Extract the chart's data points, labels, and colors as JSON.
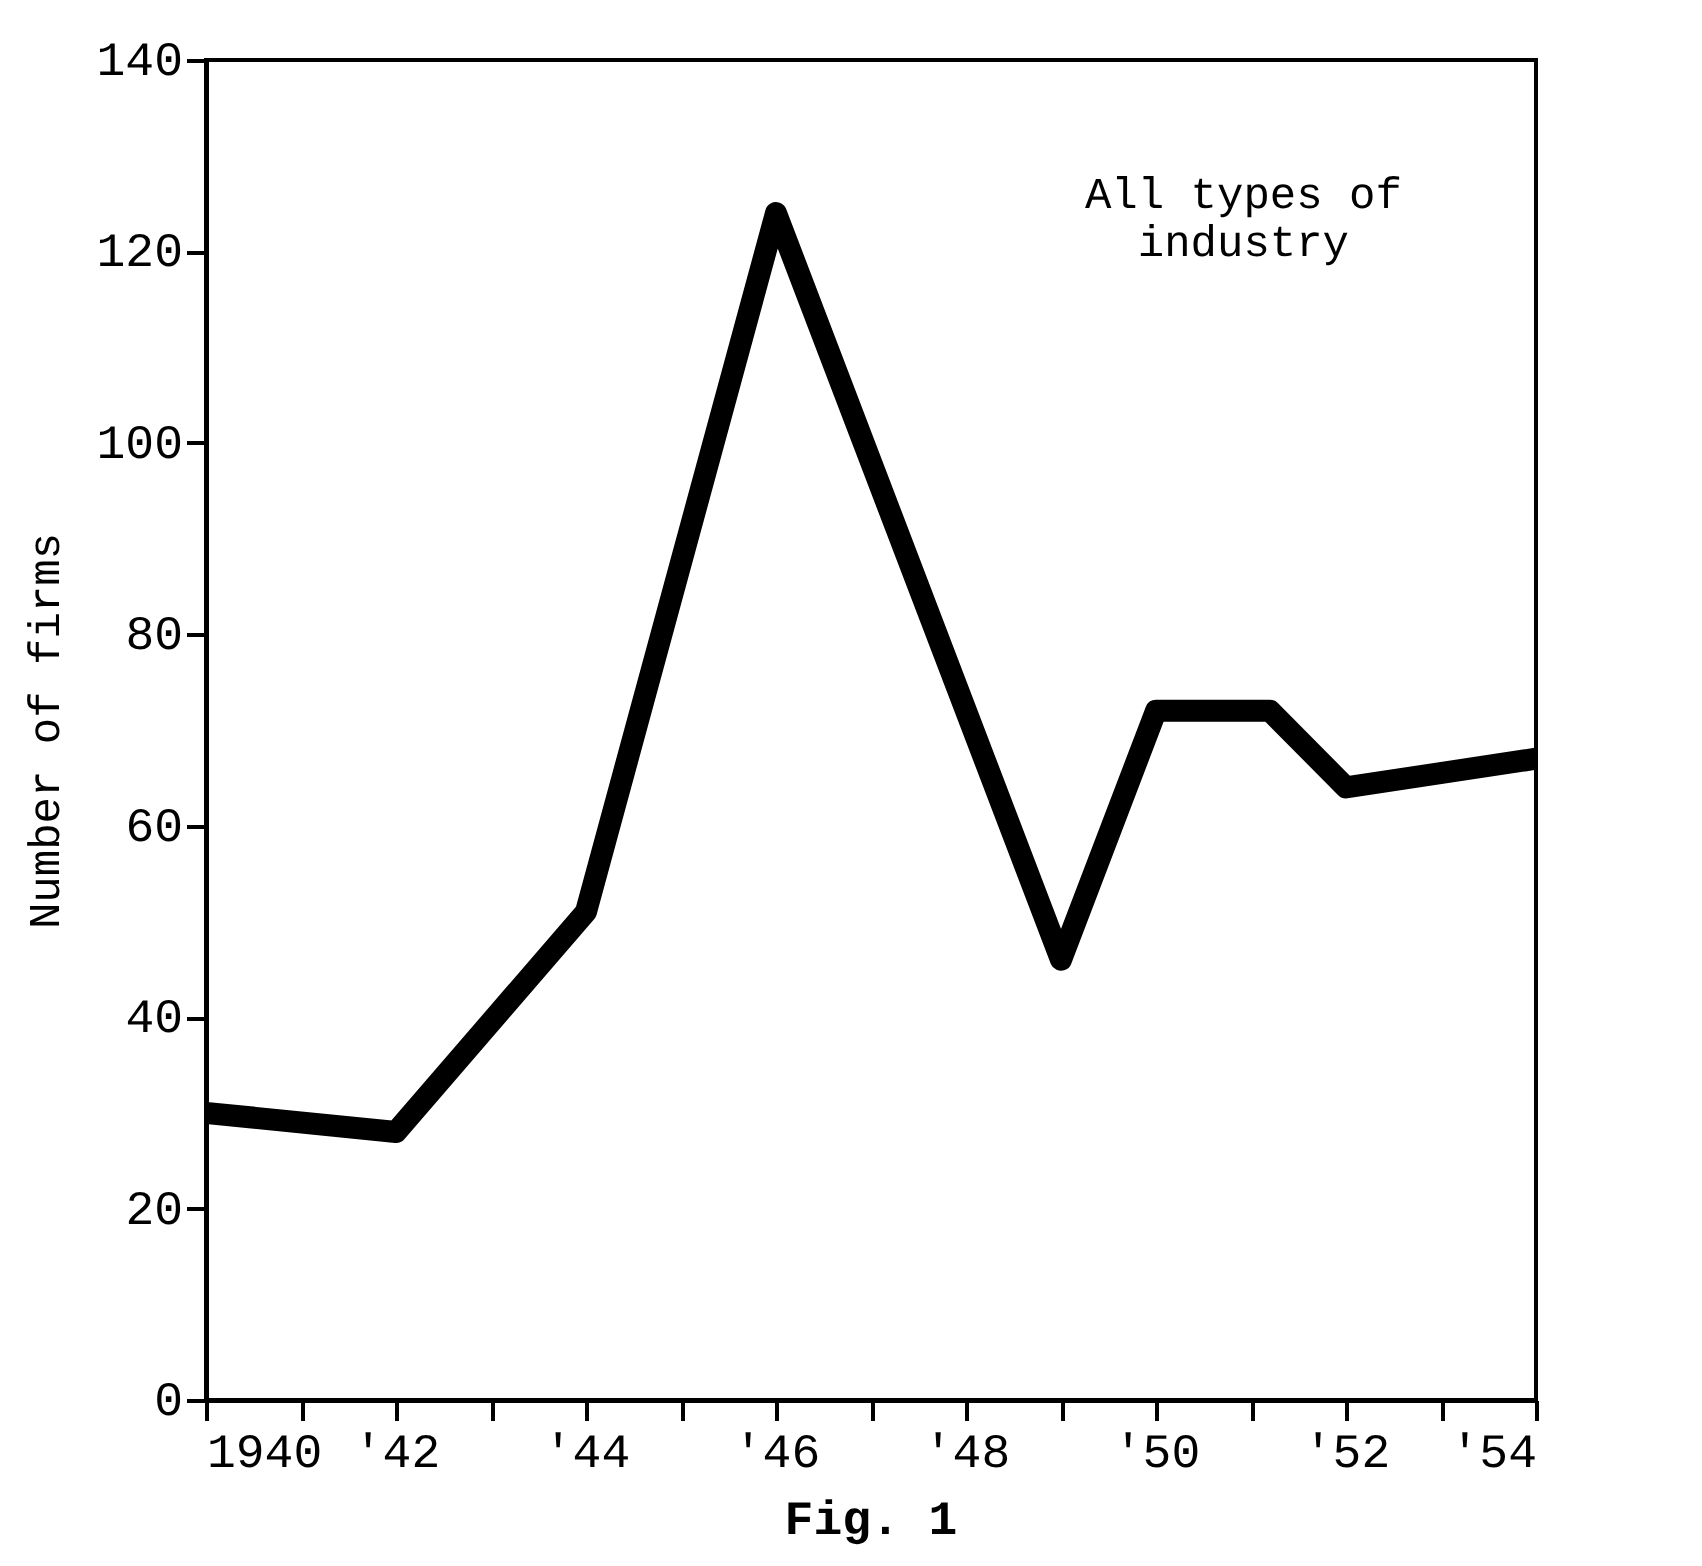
{
  "chart_data": {
    "type": "line",
    "ylabel": "Number of firms",
    "annotations": [
      "All types of industry",
      "Fig. 1"
    ],
    "x": [
      1940,
      1942,
      1944,
      1946,
      1949,
      1950,
      1951.2,
      1952,
      1954
    ],
    "series": [
      {
        "color": "#000000",
        "values": [
          30,
          28,
          51,
          124,
          46,
          72,
          72,
          64,
          67
        ]
      }
    ],
    "xlim": [
      1940,
      1954
    ],
    "xticks": [
      {
        "value": 1940,
        "label": "1940"
      },
      {
        "value": 1941,
        "label": null
      },
      {
        "value": 1942,
        "label": "'42"
      },
      {
        "value": 1943,
        "label": null
      },
      {
        "value": 1944,
        "label": "'44"
      },
      {
        "value": 1945,
        "label": null
      },
      {
        "value": 1946,
        "label": "'46"
      },
      {
        "value": 1947,
        "label": null
      },
      {
        "value": 1948,
        "label": "'48"
      },
      {
        "value": 1949,
        "label": null
      },
      {
        "value": 1950,
        "label": "'50"
      },
      {
        "value": 1951,
        "label": null
      },
      {
        "value": 1952,
        "label": "'52"
      },
      {
        "value": 1953,
        "label": null
      },
      {
        "value": 1954,
        "label": "'54"
      }
    ],
    "ylim": [
      0,
      140
    ],
    "yticks": [
      0,
      20,
      40,
      60,
      80,
      100,
      120,
      140
    ],
    "grid": false,
    "legend": false,
    "line_style": "solid"
  }
}
